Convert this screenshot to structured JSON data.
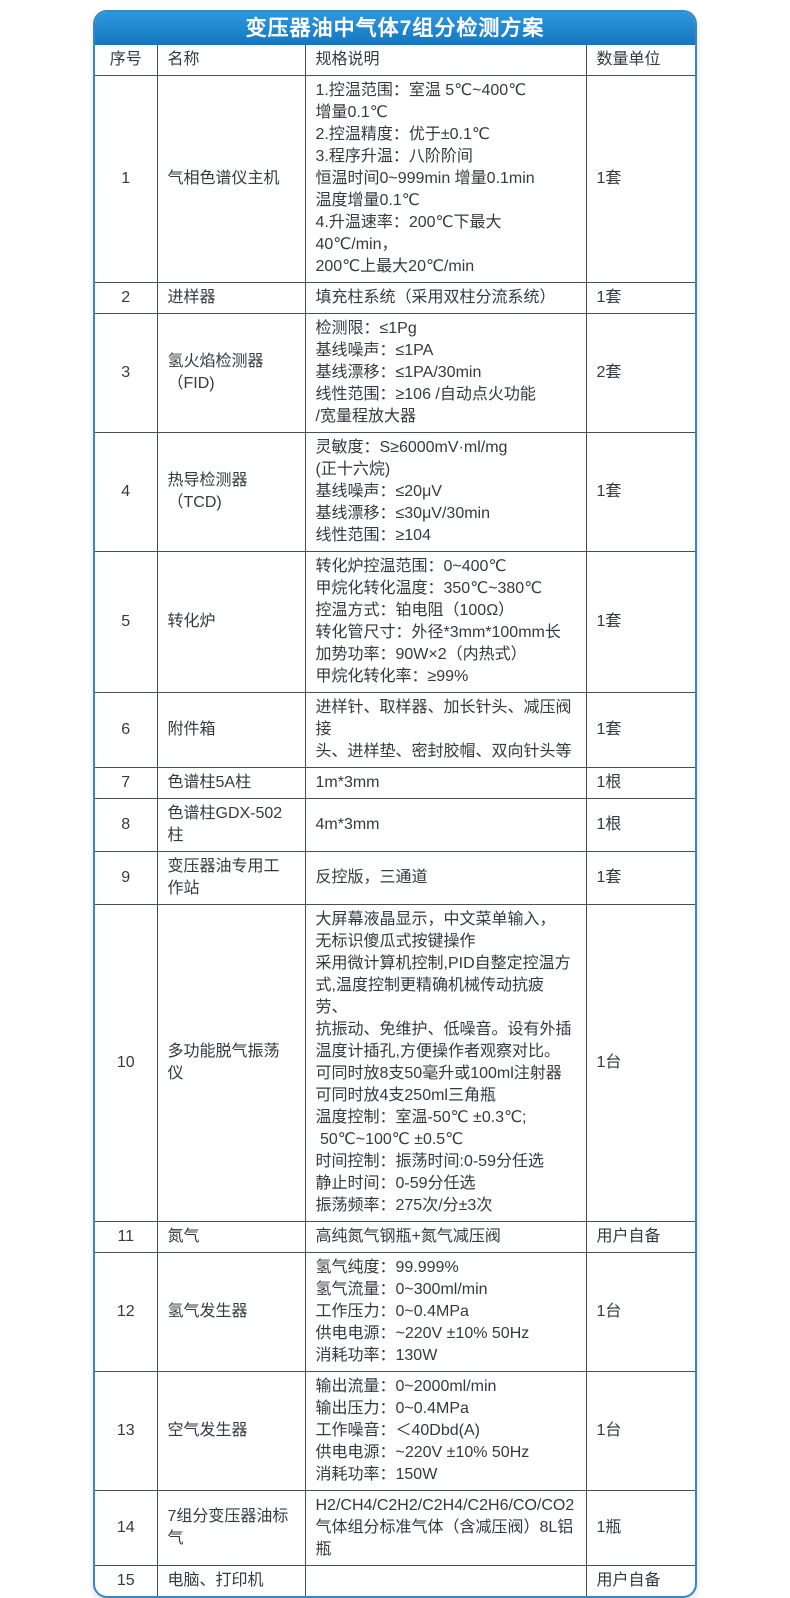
{
  "title": "变压器油中气体7组分检测方案",
  "colors": {
    "title_bar_top": "#2d98de",
    "title_bar_bottom": "#1576c0",
    "outer_border": "#3a86c0",
    "grid_line": "#45525e"
  },
  "table": {
    "headers": [
      "序号",
      "名称",
      "规格说明",
      "数量单位"
    ],
    "rows": [
      {
        "no": "1",
        "name": "气相色谱仪主机",
        "spec": [
          "1.控温范围：室温 5℃~400℃",
          "增量0.1℃",
          "2.控温精度：优于±0.1℃",
          "3.程序升温：八阶阶间",
          "恒温时间0~999min 增量0.1min",
          "温度增量0.1℃",
          "4.升温速率：200℃下最大40℃/min，",
          "200℃上最大20℃/min"
        ],
        "qty": "1套"
      },
      {
        "no": "2",
        "name": "进样器",
        "spec": [
          "填充柱系统（采用双柱分流系统）"
        ],
        "qty": "1套"
      },
      {
        "no": "3",
        "name": "氢火焰检测器（FID)",
        "spec": [
          "检测限：≤1Pg",
          "基线噪声：≤1PA",
          "基线漂移：≤1PA/30min",
          "线性范围：≥106 /自动点火功能",
          "/宽量程放大器"
        ],
        "qty": "2套"
      },
      {
        "no": "4",
        "name": "热导检测器（TCD)",
        "spec": [
          "灵敏度：S≥6000mV·ml/mg",
          "(正十六烷)",
          "基线噪声：≤20μV",
          "基线漂移：≤30μV/30min",
          "线性范围：≥104"
        ],
        "qty": "1套"
      },
      {
        "no": "5",
        "name": "转化炉",
        "spec": [
          "转化炉控温范围：0~400℃",
          "甲烷化转化温度：350℃~380℃",
          "控温方式：铂电阻（100Ω）",
          "转化管尺寸：外径*3mm*100mm长",
          "加势功率：90W×2（内热式）",
          "甲烷化转化率：≥99%"
        ],
        "qty": "1套"
      },
      {
        "no": "6",
        "name": "附件箱",
        "spec": [
          "进样针、取样器、加长针头、减压阀接",
          "头、进样垫、密封胶帽、双向针头等"
        ],
        "qty": "1套"
      },
      {
        "no": "7",
        "name": "色谱柱5A柱",
        "spec": [
          "1m*3mm"
        ],
        "qty": "1根"
      },
      {
        "no": "8",
        "name": "色谱柱GDX-502柱",
        "spec": [
          "4m*3mm"
        ],
        "qty": "1根"
      },
      {
        "no": "9",
        "name": "变压器油专用工作站",
        "spec": [
          "反控版，三通道"
        ],
        "qty": "1套"
      },
      {
        "no": "10",
        "name": "多功能脱气振荡仪",
        "spec": [
          "大屏幕液晶显示，中文菜单输入，",
          "无标识傻瓜式按键操作",
          "采用微计算机控制,PID自整定控温方",
          "式,温度控制更精确机械传动抗疲劳、",
          "抗振动、免维护、低噪音。设有外插",
          "温度计插孔,方便操作者观察对比。",
          "可同时放8支50毫升或100ml注射器",
          "可同时放4支250ml三角瓶",
          "温度控制：室温-50℃ ±0.3℃;",
          " 50℃~100℃ ±0.5℃",
          "时间控制：振荡时间:0-59分任选",
          "静止时间：0-59分任选",
          "振荡频率：275次/分±3次"
        ],
        "qty": "1台"
      },
      {
        "no": "11",
        "name": "氮气",
        "spec": [
          "高纯氮气钢瓶+氮气减压阀"
        ],
        "qty": "用户自备"
      },
      {
        "no": "12",
        "name": "氢气发生器",
        "spec": [
          "氢气纯度：99.999%",
          "氢气流量：0~300ml/min",
          "工作压力：0~0.4MPa",
          "供电电源：~220V ±10% 50Hz",
          "消耗功率：130W"
        ],
        "qty": "1台"
      },
      {
        "no": "13",
        "name": "空气发生器",
        "spec": [
          "输出流量：0~2000ml/min",
          "输出压力：0~0.4MPa",
          "工作噪音：＜40Dbd(A)",
          "供电电源：~220V ±10% 50Hz",
          "消耗功率：150W"
        ],
        "qty": "1台"
      },
      {
        "no": "14",
        "name": "7组分变压器油标气",
        "spec": [
          "H2/CH4/C2H2/C2H4/C2H6/CO/CO2",
          "气体组分标准气体（含减压阀）8L铝瓶"
        ],
        "qty": "1瓶"
      },
      {
        "no": "15",
        "name": "电脑、打印机",
        "spec": [],
        "qty": "用户自备"
      }
    ]
  }
}
